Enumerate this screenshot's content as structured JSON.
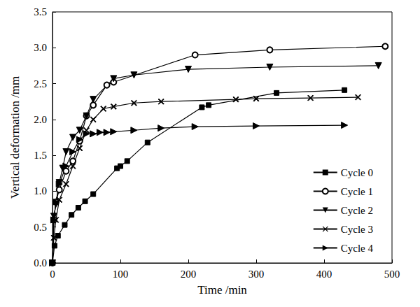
{
  "chart_data": {
    "type": "line",
    "x_label": "Time /min",
    "y_label": "Vertical deformation /mm",
    "xlim": [
      0,
      500
    ],
    "xticks": [
      0,
      100,
      200,
      300,
      400,
      500
    ],
    "ylim": [
      0,
      3.5
    ],
    "yticks": [
      {
        "value": 0,
        "label": "0.0"
      },
      0.5,
      {
        "value": 1,
        "label": "1.0"
      },
      1.5,
      {
        "value": 2,
        "label": "2.0"
      },
      2.5,
      {
        "value": 3,
        "label": "3.0"
      },
      3.5
    ],
    "grid": false,
    "legend": "lower right",
    "series": [
      {
        "name": "Cycle 0",
        "color": "#000000",
        "marker": "square",
        "x": [
          0,
          3,
          8,
          18,
          28,
          38,
          48,
          60,
          95,
          100,
          110,
          140,
          220,
          230,
          330,
          430
        ],
        "values": [
          0,
          0.24,
          0.38,
          0.53,
          0.67,
          0.77,
          0.86,
          0.96,
          1.32,
          1.35,
          1.42,
          1.68,
          2.17,
          2.2,
          2.37,
          2.41
        ]
      },
      {
        "name": "Cycle 1",
        "color": "#000000",
        "marker": "circle",
        "x": [
          0,
          2,
          5,
          10,
          20,
          30,
          40,
          50,
          60,
          80,
          90,
          210,
          320,
          490
        ],
        "values": [
          0,
          0.6,
          0.85,
          1.02,
          1.28,
          1.42,
          1.7,
          2.05,
          2.2,
          2.48,
          2.52,
          2.9,
          2.97,
          3.02
        ]
      },
      {
        "name": "Cycle 2",
        "color": "#000000",
        "marker": "triangle_down",
        "x": [
          0,
          2,
          5,
          10,
          15,
          20,
          30,
          40,
          50,
          60,
          90,
          120,
          200,
          320,
          480
        ],
        "values": [
          0,
          0.65,
          0.82,
          1.12,
          1.32,
          1.55,
          1.75,
          1.85,
          2.05,
          2.28,
          2.57,
          2.62,
          2.7,
          2.73,
          2.75
        ]
      },
      {
        "name": "Cycle 3",
        "color": "#000000",
        "marker": "x",
        "x": [
          0,
          2,
          5,
          10,
          20,
          30,
          40,
          50,
          60,
          75,
          90,
          120,
          160,
          270,
          300,
          380,
          450
        ],
        "values": [
          0,
          0.35,
          0.6,
          0.88,
          1.1,
          1.35,
          1.6,
          1.85,
          2.0,
          2.15,
          2.18,
          2.23,
          2.25,
          2.28,
          2.29,
          2.3,
          2.31
        ]
      },
      {
        "name": "Cycle 4",
        "color": "#000000",
        "marker": "triangle_right",
        "x": [
          0,
          2,
          5,
          10,
          20,
          30,
          40,
          50,
          60,
          70,
          80,
          90,
          120,
          160,
          210,
          300,
          430
        ],
        "values": [
          0,
          0.6,
          0.85,
          1.1,
          1.35,
          1.55,
          1.72,
          1.8,
          1.8,
          1.82,
          1.82,
          1.83,
          1.85,
          1.88,
          1.9,
          1.91,
          1.92
        ]
      }
    ]
  }
}
